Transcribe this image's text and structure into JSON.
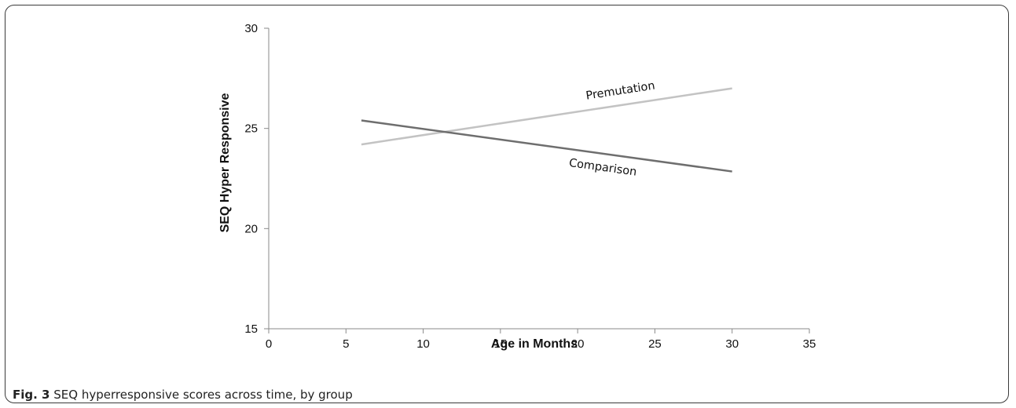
{
  "figure": {
    "caption_label": "Fig. 3",
    "caption_text": "SEQ hyperresponsive scores across time, by group"
  },
  "chart_data": {
    "type": "line",
    "xlabel": "Age in Months",
    "ylabel": "SEQ  Hyper Responsive",
    "xlim": [
      0,
      35
    ],
    "ylim": [
      15,
      30
    ],
    "xticks": [
      0,
      5,
      10,
      15,
      20,
      25,
      30,
      35
    ],
    "yticks": [
      15,
      20,
      25,
      30
    ],
    "grid": false,
    "legend": "none",
    "series": [
      {
        "name": "Premutation",
        "x": [
          6,
          30
        ],
        "y": [
          24.2,
          27.0
        ],
        "color": "#c3c3c3"
      },
      {
        "name": "Comparison",
        "x": [
          6,
          30
        ],
        "y": [
          25.4,
          22.85
        ],
        "color": "#6e6e6e"
      }
    ]
  }
}
